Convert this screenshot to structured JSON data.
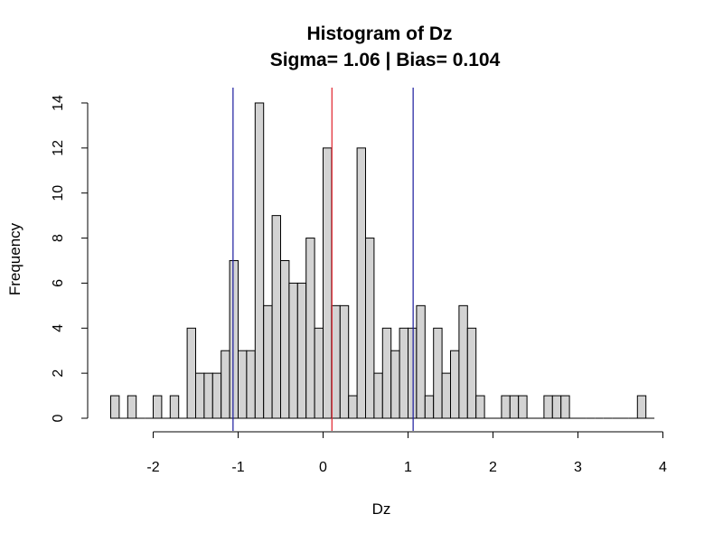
{
  "chart_data": {
    "type": "bar",
    "title": "Histogram of Dz",
    "subtitle": "Sigma= 1.06 | Bias= 0.104",
    "xlabel": "Dz",
    "ylabel": "Frequency",
    "xlim": [
      -2.5,
      4.0
    ],
    "ylim": [
      0,
      14
    ],
    "x_ticks": [
      -2,
      -1,
      0,
      1,
      2,
      3,
      4
    ],
    "y_ticks": [
      0,
      2,
      4,
      6,
      8,
      10,
      12,
      14
    ],
    "grid": false,
    "bin_width": 0.1,
    "bins": {
      "x_start": [
        -2.5,
        -2.4,
        -2.3,
        -2.2,
        -2.1,
        -2.0,
        -1.9,
        -1.8,
        -1.7,
        -1.6,
        -1.5,
        -1.4,
        -1.3,
        -1.2,
        -1.1,
        -1.0,
        -0.9,
        -0.8,
        -0.7,
        -0.6,
        -0.5,
        -0.4,
        -0.3,
        -0.2,
        -0.1,
        0.0,
        0.1,
        0.2,
        0.3,
        0.4,
        0.5,
        0.6,
        0.7,
        0.8,
        0.9,
        1.0,
        1.1,
        1.2,
        1.3,
        1.4,
        1.5,
        1.6,
        1.7,
        1.8,
        1.9,
        2.0,
        2.1,
        2.2,
        2.3,
        2.4,
        2.5,
        2.6,
        2.7,
        2.8,
        2.9,
        3.0,
        3.1,
        3.2,
        3.3,
        3.4,
        3.5,
        3.6,
        3.7,
        3.8
      ],
      "counts": [
        1,
        0,
        1,
        0,
        0,
        1,
        0,
        1,
        0,
        4,
        2,
        2,
        2,
        3,
        7,
        3,
        3,
        14,
        5,
        9,
        7,
        6,
        6,
        8,
        4,
        12,
        5,
        5,
        1,
        12,
        8,
        2,
        4,
        3,
        4,
        4,
        5,
        1,
        4,
        2,
        3,
        5,
        4,
        1,
        0,
        0,
        1,
        1,
        1,
        0,
        0,
        1,
        1,
        1,
        0,
        0,
        0,
        0,
        0,
        0,
        0,
        0,
        1,
        0
      ]
    },
    "vlines": [
      {
        "x": 0.104,
        "color": "#e0202a"
      },
      {
        "x": -1.06,
        "color": "#1a1a9e"
      },
      {
        "x": 1.06,
        "color": "#1a1a9e"
      }
    ],
    "bar_fill": "#d3d3d3",
    "bar_stroke": "#000000"
  }
}
